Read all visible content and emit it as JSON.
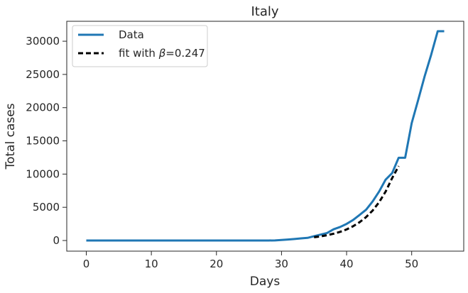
{
  "chart_data": {
    "type": "line",
    "title": "Italy",
    "xlabel": "Days",
    "ylabel": "Total cases",
    "xlim": [
      -3,
      58
    ],
    "ylim": [
      -1600,
      33000
    ],
    "xticks": [
      0,
      10,
      20,
      30,
      40,
      50
    ],
    "yticks": [
      0,
      5000,
      10000,
      15000,
      20000,
      25000,
      30000
    ],
    "grid": false,
    "legend_position": "top-left",
    "series": [
      {
        "name": "Data",
        "color": "#1f77b4",
        "style": "solid",
        "x": [
          0,
          1,
          2,
          3,
          4,
          5,
          6,
          7,
          8,
          9,
          10,
          11,
          12,
          13,
          14,
          15,
          16,
          17,
          18,
          19,
          20,
          21,
          22,
          23,
          24,
          25,
          26,
          27,
          28,
          29,
          30,
          31,
          32,
          33,
          34,
          35,
          36,
          37,
          38,
          39,
          40,
          41,
          42,
          43,
          44,
          45,
          46,
          47,
          48,
          49,
          50,
          51,
          52,
          53,
          54,
          55
        ],
        "y": [
          2,
          2,
          2,
          2,
          2,
          2,
          2,
          2,
          2,
          2,
          2,
          2,
          3,
          3,
          3,
          3,
          3,
          3,
          3,
          3,
          3,
          3,
          3,
          3,
          3,
          3,
          3,
          3,
          3,
          20,
          79,
          150,
          229,
          322,
          400,
          650,
          888,
          1128,
          1694,
          2036,
          2502,
          3089,
          3858,
          4636,
          5883,
          7375,
          9172,
          10149,
          12462,
          12462,
          17660,
          21157,
          24747,
          27980,
          31506,
          31506
        ]
      },
      {
        "name": "fit with β=0.247",
        "legend_prefix": "fit with ",
        "legend_symbol": "β",
        "legend_suffix": "=0.247",
        "color": "#000000",
        "style": "dashed",
        "x": [
          35,
          36,
          37,
          38,
          39,
          40,
          41,
          42,
          43,
          44,
          45,
          46,
          47,
          48
        ],
        "y": [
          500,
          620,
          800,
          1020,
          1300,
          1670,
          2150,
          2760,
          3530,
          4510,
          5770,
          7370,
          9400,
          11200
        ]
      }
    ]
  }
}
